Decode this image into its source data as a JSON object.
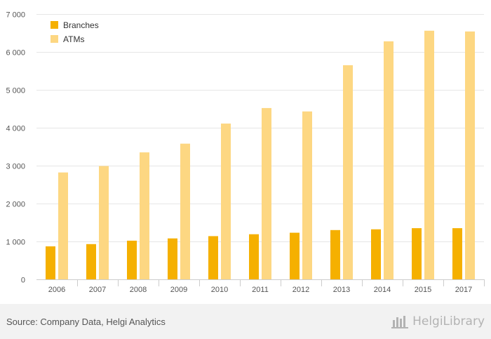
{
  "chart_data": {
    "type": "bar",
    "categories": [
      "2006",
      "2007",
      "2008",
      "2009",
      "2010",
      "2011",
      "2012",
      "2013",
      "2014",
      "2015",
      "2017"
    ],
    "series": [
      {
        "name": "Branches",
        "color": "#f5b000",
        "values": [
          870,
          930,
          1020,
          1080,
          1140,
          1190,
          1230,
          1300,
          1320,
          1350,
          1350
        ]
      },
      {
        "name": "ATMs",
        "color": "#fdd782",
        "values": [
          2820,
          2990,
          3350,
          3580,
          4110,
          4520,
          4430,
          5650,
          6280,
          6560,
          6540
        ]
      }
    ],
    "yticks": [
      0,
      1000,
      2000,
      3000,
      4000,
      5000,
      6000,
      7000
    ],
    "ytick_labels": [
      "0",
      "1 000",
      "2 000",
      "3 000",
      "4 000",
      "5 000",
      "6 000",
      "7 000"
    ],
    "ylim": [
      0,
      7000
    ],
    "grid": true,
    "legend_position": "top-left"
  },
  "footer": {
    "source": "Source: Company Data, Helgi Analytics",
    "brand": "HelgiLibrary"
  },
  "colors": {
    "grid": "#e6e6e6",
    "axis": "#cccccc",
    "tick_text": "#555555",
    "footer_bg": "#f2f2f2"
  }
}
